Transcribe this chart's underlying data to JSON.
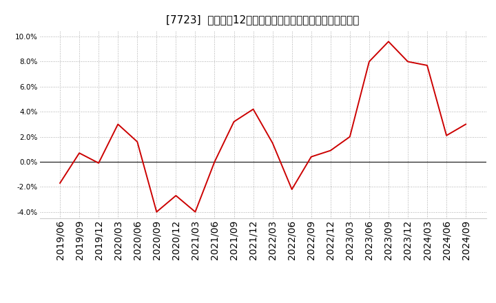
{
  "title": "[7723]  売上高の12か月移動合計の対前年同期増減率の推移",
  "x_labels": [
    "2019/06",
    "2019/09",
    "2019/12",
    "2020/03",
    "2020/06",
    "2020/09",
    "2020/12",
    "2021/03",
    "2021/06",
    "2021/09",
    "2021/12",
    "2022/03",
    "2022/06",
    "2022/09",
    "2022/12",
    "2023/03",
    "2023/06",
    "2023/09",
    "2023/12",
    "2024/03",
    "2024/06",
    "2024/09"
  ],
  "values": [
    -1.7,
    0.7,
    -0.1,
    3.0,
    1.6,
    -4.0,
    -2.7,
    -4.0,
    0.0,
    3.2,
    4.2,
    1.5,
    -2.2,
    0.4,
    0.9,
    2.0,
    8.0,
    9.6,
    8.0,
    7.7,
    2.1,
    3.0
  ],
  "line_color": "#cc0000",
  "zero_line_color": "#333333",
  "background_color": "#ffffff",
  "plot_bg_color": "#ffffff",
  "grid_color": "#aaaaaa",
  "ylim": [
    -4.5,
    10.5
  ],
  "yticks": [
    -4.0,
    -2.0,
    0.0,
    2.0,
    4.0,
    6.0,
    8.0,
    10.0
  ],
  "title_fontsize": 11,
  "tick_fontsize": 7.5
}
